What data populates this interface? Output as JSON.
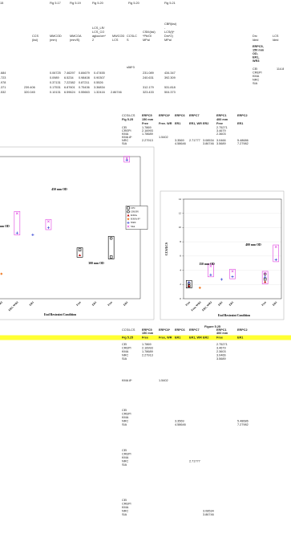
{
  "top": {
    "fig_row": [
      "15",
      "Fig 5.17",
      "Fig 5.19",
      "Fig 5.20",
      "Fig 5.20",
      "Fig 5.21"
    ],
    "headers": [
      [
        "CCS",
        "(ksi)"
      ],
      [
        "MMCOD",
        "(mm)"
      ],
      [
        "MMCOA",
        "(mm/S)"
      ],
      [
        "LCS_LR/",
        "LCS_CO",
        "agloo/cm*",
        "2"
      ],
      [
        "MWCOD",
        "LCS"
      ],
      [
        "CCSLC",
        "S"
      ],
      [
        "CSIII(ksi)",
        "*Pb/Ol",
        "MPal"
      ],
      [
        "CBR(ksi)",
        "-",
        "LCS(f)*",
        "Dm*2)",
        "MPal"
      ],
      [
        "Drc",
        "Ided"
      ],
      [
        "LCS",
        "Ided"
      ]
    ],
    "note": "s58*3",
    "specimen": [
      "ERPC5,",
      "150 mm",
      "OD,",
      "ER1,",
      "WR3"
    ],
    "labs": [
      "CEI",
      "CREPI",
      "KMA",
      "NRC",
      "SIA"
    ],
    "lcs_value": "114.8",
    "rows": [
      [
        ".684",
        null,
        "0.06725",
        "7.46297",
        "0.84679",
        "0.47455",
        null,
        null,
        "231.089",
        "434.347"
      ],
      [
        ".723",
        null,
        "0.0989",
        "6.5234",
        "0.98408",
        "0.90307",
        null,
        null,
        "240.631",
        "392.309"
      ],
      [
        ".978",
        null,
        "0.37131",
        "7.22382",
        "0.87211",
        "0.5526",
        null,
        null,
        null,
        null
      ],
      [
        ".371",
        "239.406",
        "0.17531",
        "6.87601",
        "0.75436",
        "3.36834",
        null,
        null,
        "312.179",
        "531.818"
      ],
      [
        ".532",
        "320.045",
        "0.10131",
        "6.59624",
        "0.55663",
        "1.32416",
        "2.86746",
        null,
        "323.433",
        "504.373"
      ]
    ]
  },
  "mid_table": {
    "title": [
      "CCS/LCS",
      "Fig 5.25"
    ],
    "header": [
      "ERPC5",
      "ERPC8*",
      "ERPC6",
      "ERPC7",
      null,
      "ERPC1",
      "ERPC2"
    ],
    "sizes": [
      "150 mm",
      null,
      null,
      null,
      null,
      "400 mm",
      null
    ],
    "conditions": [
      "Free",
      "Free. WR",
      "ER1",
      "ER1, WR",
      "ER2",
      "Free",
      "ER1"
    ],
    "row_labels": [
      "CEI",
      "CREPI",
      "KMA",
      "KMA 8*",
      "NRC",
      "SIA"
    ],
    "rows": [
      [
        "1.7869",
        null,
        null,
        null,
        null,
        "2.75271",
        null
      ],
      [
        "2.16993",
        null,
        null,
        null,
        null,
        "3.4679",
        null
      ],
      [
        "1.78689",
        null,
        null,
        null,
        null,
        "2.3603",
        null
      ],
      [
        null,
        "1.5402",
        null,
        null,
        null,
        null,
        null
      ],
      [
        "2.27913",
        null,
        "3.3569",
        "2.71777",
        "3.08534",
        "3.0466",
        "5.48686"
      ],
      [
        null,
        null,
        "4.58646",
        null,
        "3.86746",
        "3.5689",
        "7.27982"
      ]
    ]
  },
  "chart_data": [
    {
      "type": "dot",
      "categories": [
        "Free, WR3",
        "ER1, WR3",
        "ER1",
        null,
        null,
        "Free",
        "ER1",
        "Free",
        "ER1"
      ],
      "ylim": [
        0,
        16
      ],
      "xlabel": "End Restraint Condition",
      "annotations": [
        "450 mm OD",
        "150 mm OD",
        "300 mm OD"
      ],
      "legend": "right",
      "series": [
        {
          "name": "CEI",
          "color": "#000000",
          "marker": "square",
          "values": [
            null,
            null,
            null,
            null,
            null,
            5.5,
            null,
            4.7,
            null
          ]
        },
        {
          "name": "CREPI",
          "color": "#000000",
          "marker": "circle",
          "values": [
            null,
            null,
            null,
            null,
            null,
            null,
            null,
            6.8,
            null
          ]
        },
        {
          "name": "KMA",
          "color": "#c00000",
          "marker": "triangle",
          "values": [
            null,
            null,
            null,
            null,
            null,
            4.9,
            null,
            null,
            null
          ]
        },
        {
          "name": "KMA 8*",
          "color": "#f08030",
          "marker": "diamond",
          "values": [
            2.8,
            null,
            null,
            null,
            null,
            null,
            null,
            null,
            null
          ]
        },
        {
          "name": "NRC",
          "color": "#2030d0",
          "marker": "plus",
          "values": [
            null,
            7.4,
            7.2,
            8.0,
            null,
            null,
            null,
            null,
            15.6
          ]
        },
        {
          "name": "SIA",
          "color": "#e040e0",
          "marker": "cross",
          "values": [
            null,
            9.6,
            null,
            8.7,
            null,
            null,
            null,
            null,
            15.8
          ]
        }
      ]
    },
    {
      "type": "dot",
      "categories": [
        "Free",
        "Free, WR3",
        "ER1, WR3",
        "ER1",
        "ER1",
        null,
        null,
        "Free",
        "ER1"
      ],
      "ylim": [
        0,
        14
      ],
      "yticks": [
        0,
        2,
        4,
        6,
        8,
        10,
        12,
        14
      ],
      "grid": true,
      "ylabel": "CCS/LCS",
      "xlabel": "End Restraint Condition",
      "annotations": [
        "150 mm OD",
        "400 mm OD"
      ],
      "series": [
        {
          "name": "CEI",
          "color": "#000000",
          "marker": "square",
          "values": [
            1.7869,
            null,
            null,
            null,
            null,
            null,
            null,
            2.75271,
            null
          ]
        },
        {
          "name": "CREPI",
          "color": "#000000",
          "marker": "circle",
          "values": [
            2.16993,
            null,
            null,
            null,
            null,
            null,
            null,
            3.4679,
            null
          ]
        },
        {
          "name": "KMA",
          "color": "#c00000",
          "marker": "triangle",
          "values": [
            1.78689,
            null,
            null,
            null,
            null,
            null,
            null,
            2.3603,
            null
          ]
        },
        {
          "name": "KMA 8*",
          "color": "#f08030",
          "marker": "diamond",
          "values": [
            null,
            1.5402,
            null,
            null,
            null,
            null,
            null,
            null,
            null
          ]
        },
        {
          "name": "NRC",
          "color": "#2030d0",
          "marker": "plus",
          "values": [
            2.27913,
            null,
            3.3569,
            2.71777,
            3.08534,
            null,
            null,
            3.0466,
            5.48686
          ]
        },
        {
          "name": "SIA",
          "color": "#e040e0",
          "marker": "cross",
          "values": [
            null,
            null,
            4.58646,
            null,
            3.86746,
            null,
            null,
            3.5689,
            7.27982
          ]
        }
      ]
    }
  ],
  "lower": {
    "figure": "Figure 5.25",
    "title": [
      "CCS/LCS",
      "Fig 5.25"
    ],
    "header": [
      "ERPC5",
      "ERPC8*",
      "ERPC6",
      "ERPC7",
      null,
      "ERPC1",
      "ERPC2"
    ],
    "sizes": [
      "150 mm",
      null,
      null,
      null,
      null,
      "400 mm",
      null
    ],
    "conditions": [
      "Free",
      "Free, WR",
      "ER1",
      "ER1, WR",
      "ER2",
      "Free",
      "ER1"
    ],
    "blocks": [
      {
        "labels": [
          "CEI",
          "CREPI",
          "KMA",
          "NRC",
          "SIA"
        ],
        "rows": [
          [
            "1.7869",
            null,
            null,
            null,
            null,
            "2.75271",
            null
          ],
          [
            "2.16993",
            null,
            null,
            null,
            null,
            "3.4679",
            null
          ],
          [
            "1.78689",
            null,
            null,
            null,
            null,
            "2.3603",
            null
          ],
          [
            "2.27913",
            null,
            null,
            null,
            null,
            "3.0466",
            null
          ],
          [
            null,
            null,
            null,
            null,
            null,
            "3.5689",
            null
          ]
        ]
      },
      {
        "labels": [
          "KMA 8*"
        ],
        "rows": [
          [
            null,
            "1.5402",
            null,
            null,
            null,
            null,
            null
          ]
        ]
      },
      {
        "labels": [
          "CEI",
          "CREPI",
          "KMA",
          "NRC",
          "SIA"
        ],
        "rows": [
          [
            null,
            null,
            null,
            null,
            null,
            null,
            null
          ],
          [
            null,
            null,
            null,
            null,
            null,
            null,
            null
          ],
          [
            null,
            null,
            null,
            null,
            null,
            null,
            null
          ],
          [
            null,
            null,
            "3.3569",
            null,
            null,
            null,
            "5.48686"
          ],
          [
            null,
            null,
            "4.58646",
            null,
            null,
            null,
            "7.27982"
          ]
        ]
      },
      {
        "labels": [
          "CEI",
          "CREPI",
          "KMA",
          "NRC",
          "SIA"
        ],
        "rows": [
          [
            null,
            null,
            null,
            null,
            null,
            null,
            null
          ],
          [
            null,
            null,
            null,
            null,
            null,
            null,
            null
          ],
          [
            null,
            null,
            null,
            null,
            null,
            null,
            null
          ],
          [
            null,
            null,
            null,
            "2.71777",
            null,
            null,
            null
          ],
          [
            null,
            null,
            null,
            null,
            null,
            null,
            null
          ]
        ]
      },
      {
        "labels": [
          "CEI",
          "CREPI",
          "KMA",
          "NRC",
          "SIA"
        ],
        "rows": [
          [
            null,
            null,
            null,
            null,
            null,
            null,
            null
          ],
          [
            null,
            null,
            null,
            null,
            null,
            null,
            null
          ],
          [
            null,
            null,
            null,
            null,
            null,
            null,
            null
          ],
          [
            null,
            null,
            null,
            null,
            "3.08534",
            null,
            null
          ],
          [
            null,
            null,
            null,
            null,
            "3.86746",
            null,
            null
          ]
        ]
      }
    ]
  }
}
